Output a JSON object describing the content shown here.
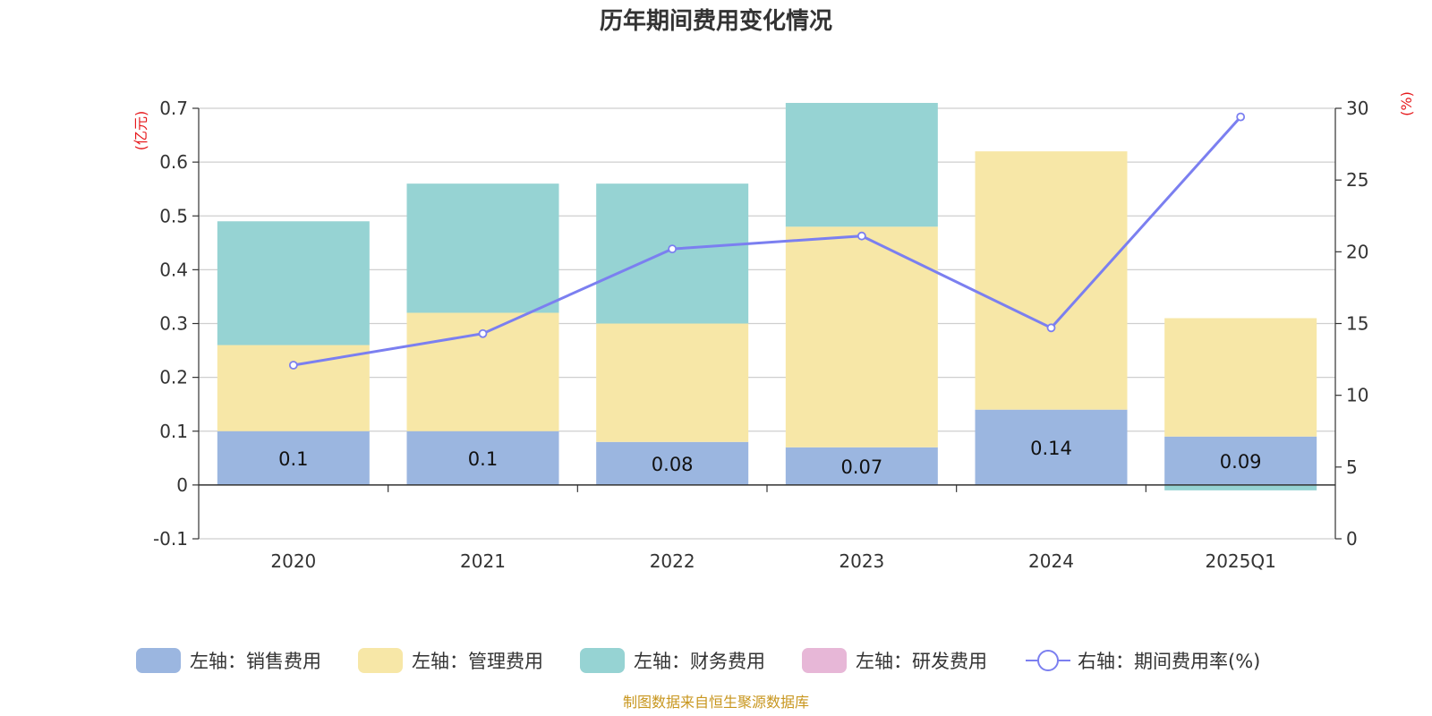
{
  "chart_data": {
    "type": "bar",
    "stacked": true,
    "title": "历年期间费用变化情况",
    "categories": [
      "2020",
      "2021",
      "2022",
      "2023",
      "2024",
      "2025Q1"
    ],
    "left_axis": {
      "unit": "(亿元)",
      "ylim": [
        -0.1,
        0.7
      ],
      "ticks": [
        "0.7",
        "0.6",
        "0.5",
        "0.4",
        "0.3",
        "0.2",
        "0.1",
        "0",
        "-0.1"
      ]
    },
    "right_axis": {
      "unit": "(%)",
      "ylim": [
        0,
        30
      ],
      "ticks": [
        "30",
        "25",
        "20",
        "15",
        "10",
        "5",
        "0"
      ]
    },
    "series": [
      {
        "name": "左轴：销售费用",
        "axis": "left",
        "color": "#9bb6e0",
        "values": [
          0.1,
          0.1,
          0.08,
          0.07,
          0.14,
          0.09
        ],
        "labels": [
          "0.1",
          "0.1",
          "0.08",
          "0.07",
          "0.14",
          "0.09"
        ]
      },
      {
        "name": "左轴：管理费用",
        "axis": "left",
        "color": "#f7e7a7",
        "values": [
          0.16,
          0.22,
          0.22,
          0.41,
          0.48,
          0.22
        ]
      },
      {
        "name": "左轴：财务费用",
        "axis": "left",
        "color": "#96d3d3",
        "values": [
          0.23,
          0.24,
          0.26,
          0.23,
          0,
          -0.01
        ]
      },
      {
        "name": "左轴：研发费用",
        "axis": "left",
        "color": "#e7b7d7",
        "values": [
          0,
          0,
          0,
          0,
          0,
          0
        ]
      },
      {
        "name": "右轴：期间费用率(%)",
        "axis": "right",
        "type": "line",
        "color": "#7b7ff0",
        "values": [
          12.1,
          14.3,
          20.2,
          21.1,
          14.7,
          29.4
        ]
      }
    ],
    "grid": true,
    "legend_position": "bottom",
    "source": "制图数据来自恒生聚源数据库"
  }
}
